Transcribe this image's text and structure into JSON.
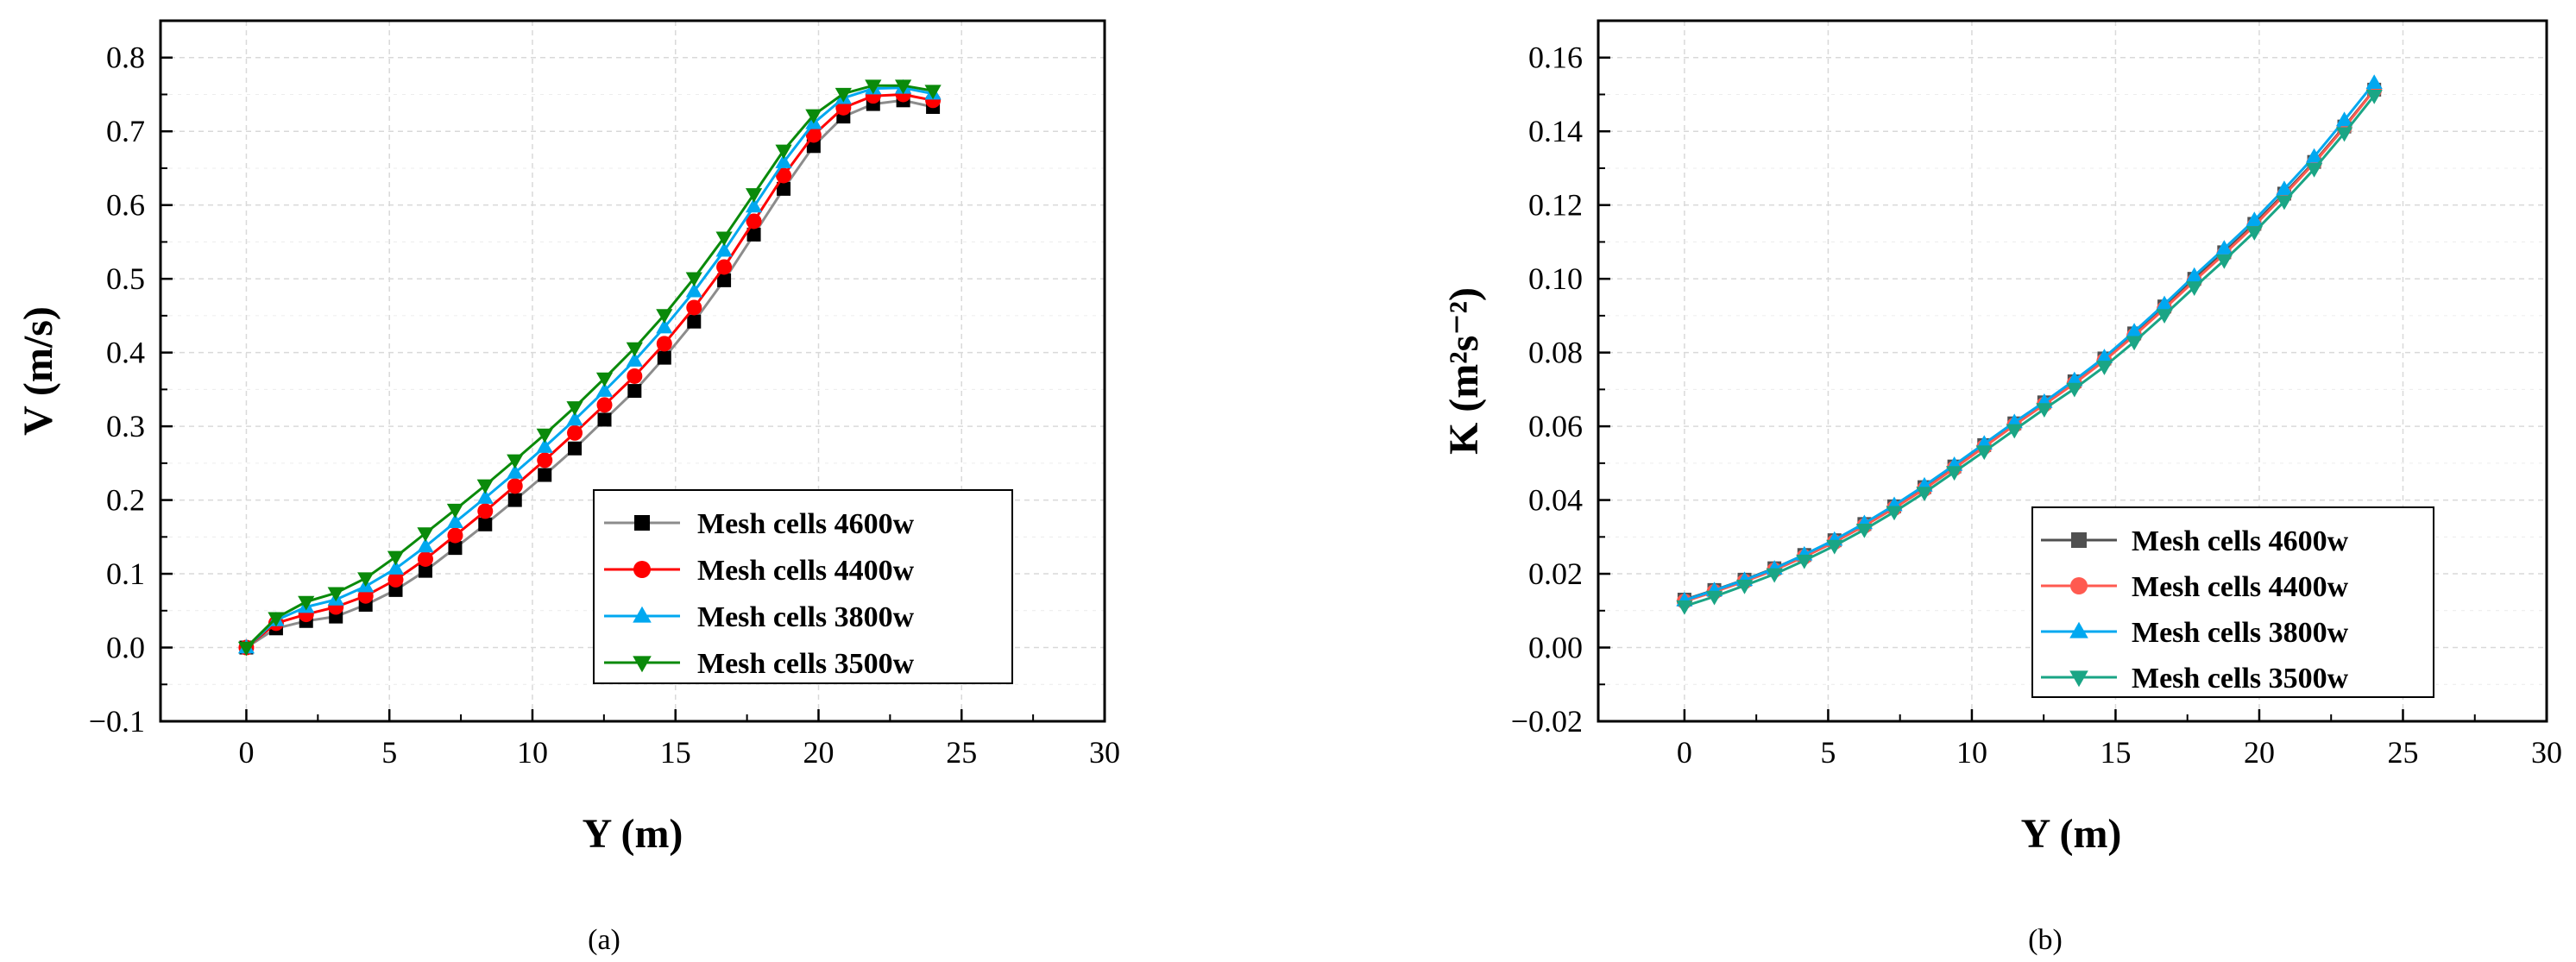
{
  "chart_data": [
    {
      "type": "line",
      "panel_label": "(a)",
      "xlabel": "Y (m)",
      "ylabel": "V (m/s)",
      "xlim": [
        -3,
        30
      ],
      "ylim": [
        -0.1,
        0.85
      ],
      "xticks": [
        0,
        5,
        10,
        15,
        20,
        25,
        30
      ],
      "yticks": [
        -0.1,
        0.0,
        0.1,
        0.2,
        0.3,
        0.4,
        0.5,
        0.6,
        0.7,
        0.8
      ],
      "xtick_labels": [
        "0",
        "5",
        "10",
        "15",
        "20",
        "25",
        "30"
      ],
      "ytick_labels": [
        "−0.1",
        "0.0",
        "0.1",
        "0.2",
        "0.3",
        "0.4",
        "0.5",
        "0.6",
        "0.7",
        "0.8"
      ],
      "grid": true,
      "legend_position": "bottom-right",
      "x": [
        0,
        1.04,
        2.09,
        3.13,
        4.17,
        5.22,
        6.26,
        7.3,
        8.35,
        9.39,
        10.43,
        11.48,
        12.52,
        13.57,
        14.61,
        15.65,
        16.7,
        17.74,
        18.78,
        19.83,
        20.87,
        21.91,
        22.96,
        24.0
      ],
      "series": [
        {
          "name": "Mesh cells 4600w",
          "color": "#000000",
          "line_color": "#8c8c8c",
          "marker": "square",
          "values": [
            0.0,
            0.026,
            0.036,
            0.042,
            0.058,
            0.078,
            0.104,
            0.135,
            0.167,
            0.2,
            0.234,
            0.27,
            0.309,
            0.348,
            0.393,
            0.442,
            0.498,
            0.56,
            0.622,
            0.68,
            0.72,
            0.737,
            0.742,
            0.733
          ]
        },
        {
          "name": "Mesh cells 4400w",
          "color": "#ff0000",
          "line_color": "#ff0000",
          "marker": "circle",
          "values": [
            0.0,
            0.033,
            0.045,
            0.055,
            0.07,
            0.092,
            0.12,
            0.152,
            0.185,
            0.219,
            0.254,
            0.291,
            0.329,
            0.368,
            0.412,
            0.461,
            0.516,
            0.578,
            0.64,
            0.695,
            0.732,
            0.748,
            0.75,
            0.742
          ]
        },
        {
          "name": "Mesh cells 3800w",
          "color": "#00a8f0",
          "line_color": "#00a8f0",
          "marker": "triangle-up",
          "values": [
            0.0,
            0.037,
            0.055,
            0.065,
            0.083,
            0.107,
            0.137,
            0.17,
            0.203,
            0.237,
            0.272,
            0.309,
            0.348,
            0.389,
            0.434,
            0.483,
            0.538,
            0.598,
            0.658,
            0.711,
            0.745,
            0.758,
            0.759,
            0.751
          ]
        },
        {
          "name": "Mesh cells 3500w",
          "color": "#0a8a0a",
          "line_color": "#0a8a0a",
          "marker": "triangle-down",
          "values": [
            0.0,
            0.04,
            0.062,
            0.074,
            0.094,
            0.123,
            0.155,
            0.187,
            0.22,
            0.254,
            0.289,
            0.326,
            0.365,
            0.406,
            0.451,
            0.501,
            0.556,
            0.615,
            0.674,
            0.722,
            0.751,
            0.762,
            0.762,
            0.755
          ]
        }
      ]
    },
    {
      "type": "line",
      "panel_label": "(b)",
      "xlabel": "Y (m)",
      "ylabel": "K (m²s⁻²)",
      "xlim": [
        -3,
        30
      ],
      "ylim": [
        -0.02,
        0.17
      ],
      "xticks": [
        0,
        5,
        10,
        15,
        20,
        25,
        30
      ],
      "yticks": [
        -0.02,
        0.0,
        0.02,
        0.04,
        0.06,
        0.08,
        0.1,
        0.12,
        0.14,
        0.16
      ],
      "xtick_labels": [
        "0",
        "5",
        "10",
        "15",
        "20",
        "25",
        "30"
      ],
      "ytick_labels": [
        "−0.02",
        "0.00",
        "0.02",
        "0.04",
        "0.06",
        "0.08",
        "0.10",
        "0.12",
        "0.14",
        "0.16"
      ],
      "grid": true,
      "legend_position": "bottom-right",
      "x": [
        0,
        1.04,
        2.09,
        3.13,
        4.17,
        5.22,
        6.26,
        7.3,
        8.35,
        9.39,
        10.43,
        11.48,
        12.52,
        13.57,
        14.61,
        15.65,
        16.7,
        17.74,
        18.78,
        19.83,
        20.87,
        21.91,
        22.96,
        24.0
      ],
      "series": [
        {
          "name": "Mesh cells 4600w",
          "color": "#505050",
          "line_color": "#505050",
          "marker": "square",
          "values": [
            0.013,
            0.0156,
            0.0184,
            0.0215,
            0.0251,
            0.0291,
            0.0335,
            0.0383,
            0.0435,
            0.0491,
            0.0549,
            0.0608,
            0.0665,
            0.0722,
            0.0784,
            0.0852,
            0.0925,
            0.1,
            0.1072,
            0.1149,
            0.1231,
            0.1317,
            0.1413,
            0.1513
          ]
        },
        {
          "name": "Mesh cells 4400w",
          "color": "#ff5a50",
          "line_color": "#ff5a50",
          "marker": "circle",
          "values": [
            0.0125,
            0.0151,
            0.0179,
            0.021,
            0.0246,
            0.0286,
            0.033,
            0.0378,
            0.043,
            0.0486,
            0.0544,
            0.0603,
            0.0659,
            0.0716,
            0.0778,
            0.0846,
            0.0919,
            0.0994,
            0.1067,
            0.1144,
            0.1227,
            0.1314,
            0.141,
            0.1512
          ]
        },
        {
          "name": "Mesh cells 3800w",
          "color": "#00a8f0",
          "line_color": "#00a8f0",
          "marker": "triangle-up",
          "values": [
            0.0128,
            0.0155,
            0.0183,
            0.0214,
            0.0252,
            0.0292,
            0.0337,
            0.0386,
            0.0439,
            0.0495,
            0.0553,
            0.0611,
            0.0666,
            0.0725,
            0.0787,
            0.0857,
            0.0931,
            0.1008,
            0.1082,
            0.1159,
            0.1243,
            0.1331,
            0.143,
            0.1531
          ]
        },
        {
          "name": "Mesh cells 3500w",
          "color": "#1aa585",
          "line_color": "#1aa585",
          "marker": "triangle-down",
          "values": [
            0.0112,
            0.0138,
            0.0168,
            0.0199,
            0.0236,
            0.0276,
            0.032,
            0.0368,
            0.042,
            0.0476,
            0.0532,
            0.059,
            0.0647,
            0.0702,
            0.0762,
            0.0829,
            0.0902,
            0.0977,
            0.105,
            0.1127,
            0.121,
            0.1298,
            0.1395,
            0.1497
          ]
        }
      ]
    }
  ]
}
